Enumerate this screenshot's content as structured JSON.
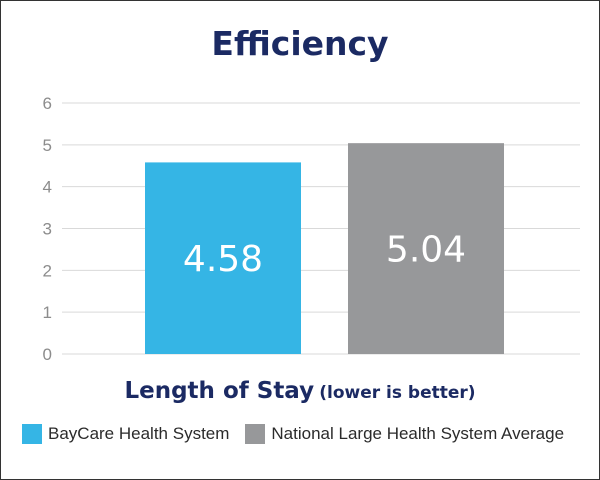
{
  "chart_data": {
    "type": "bar",
    "title": "Efficiency",
    "xlabel": "Length of Stay",
    "xlabel_note": "(lower is better)",
    "ylabel": "",
    "ylim": [
      0,
      6
    ],
    "yticks": [
      0,
      1,
      2,
      3,
      4,
      5,
      6
    ],
    "grid": true,
    "legend_position": "bottom",
    "categories": [
      "BayCare Health System",
      "National Large Health System Average"
    ],
    "values": [
      4.58,
      5.04
    ],
    "value_labels": [
      "4.58",
      "5.04"
    ],
    "colors": [
      "#35b5e5",
      "#97989a"
    ],
    "title_color": "#1b2a63"
  }
}
